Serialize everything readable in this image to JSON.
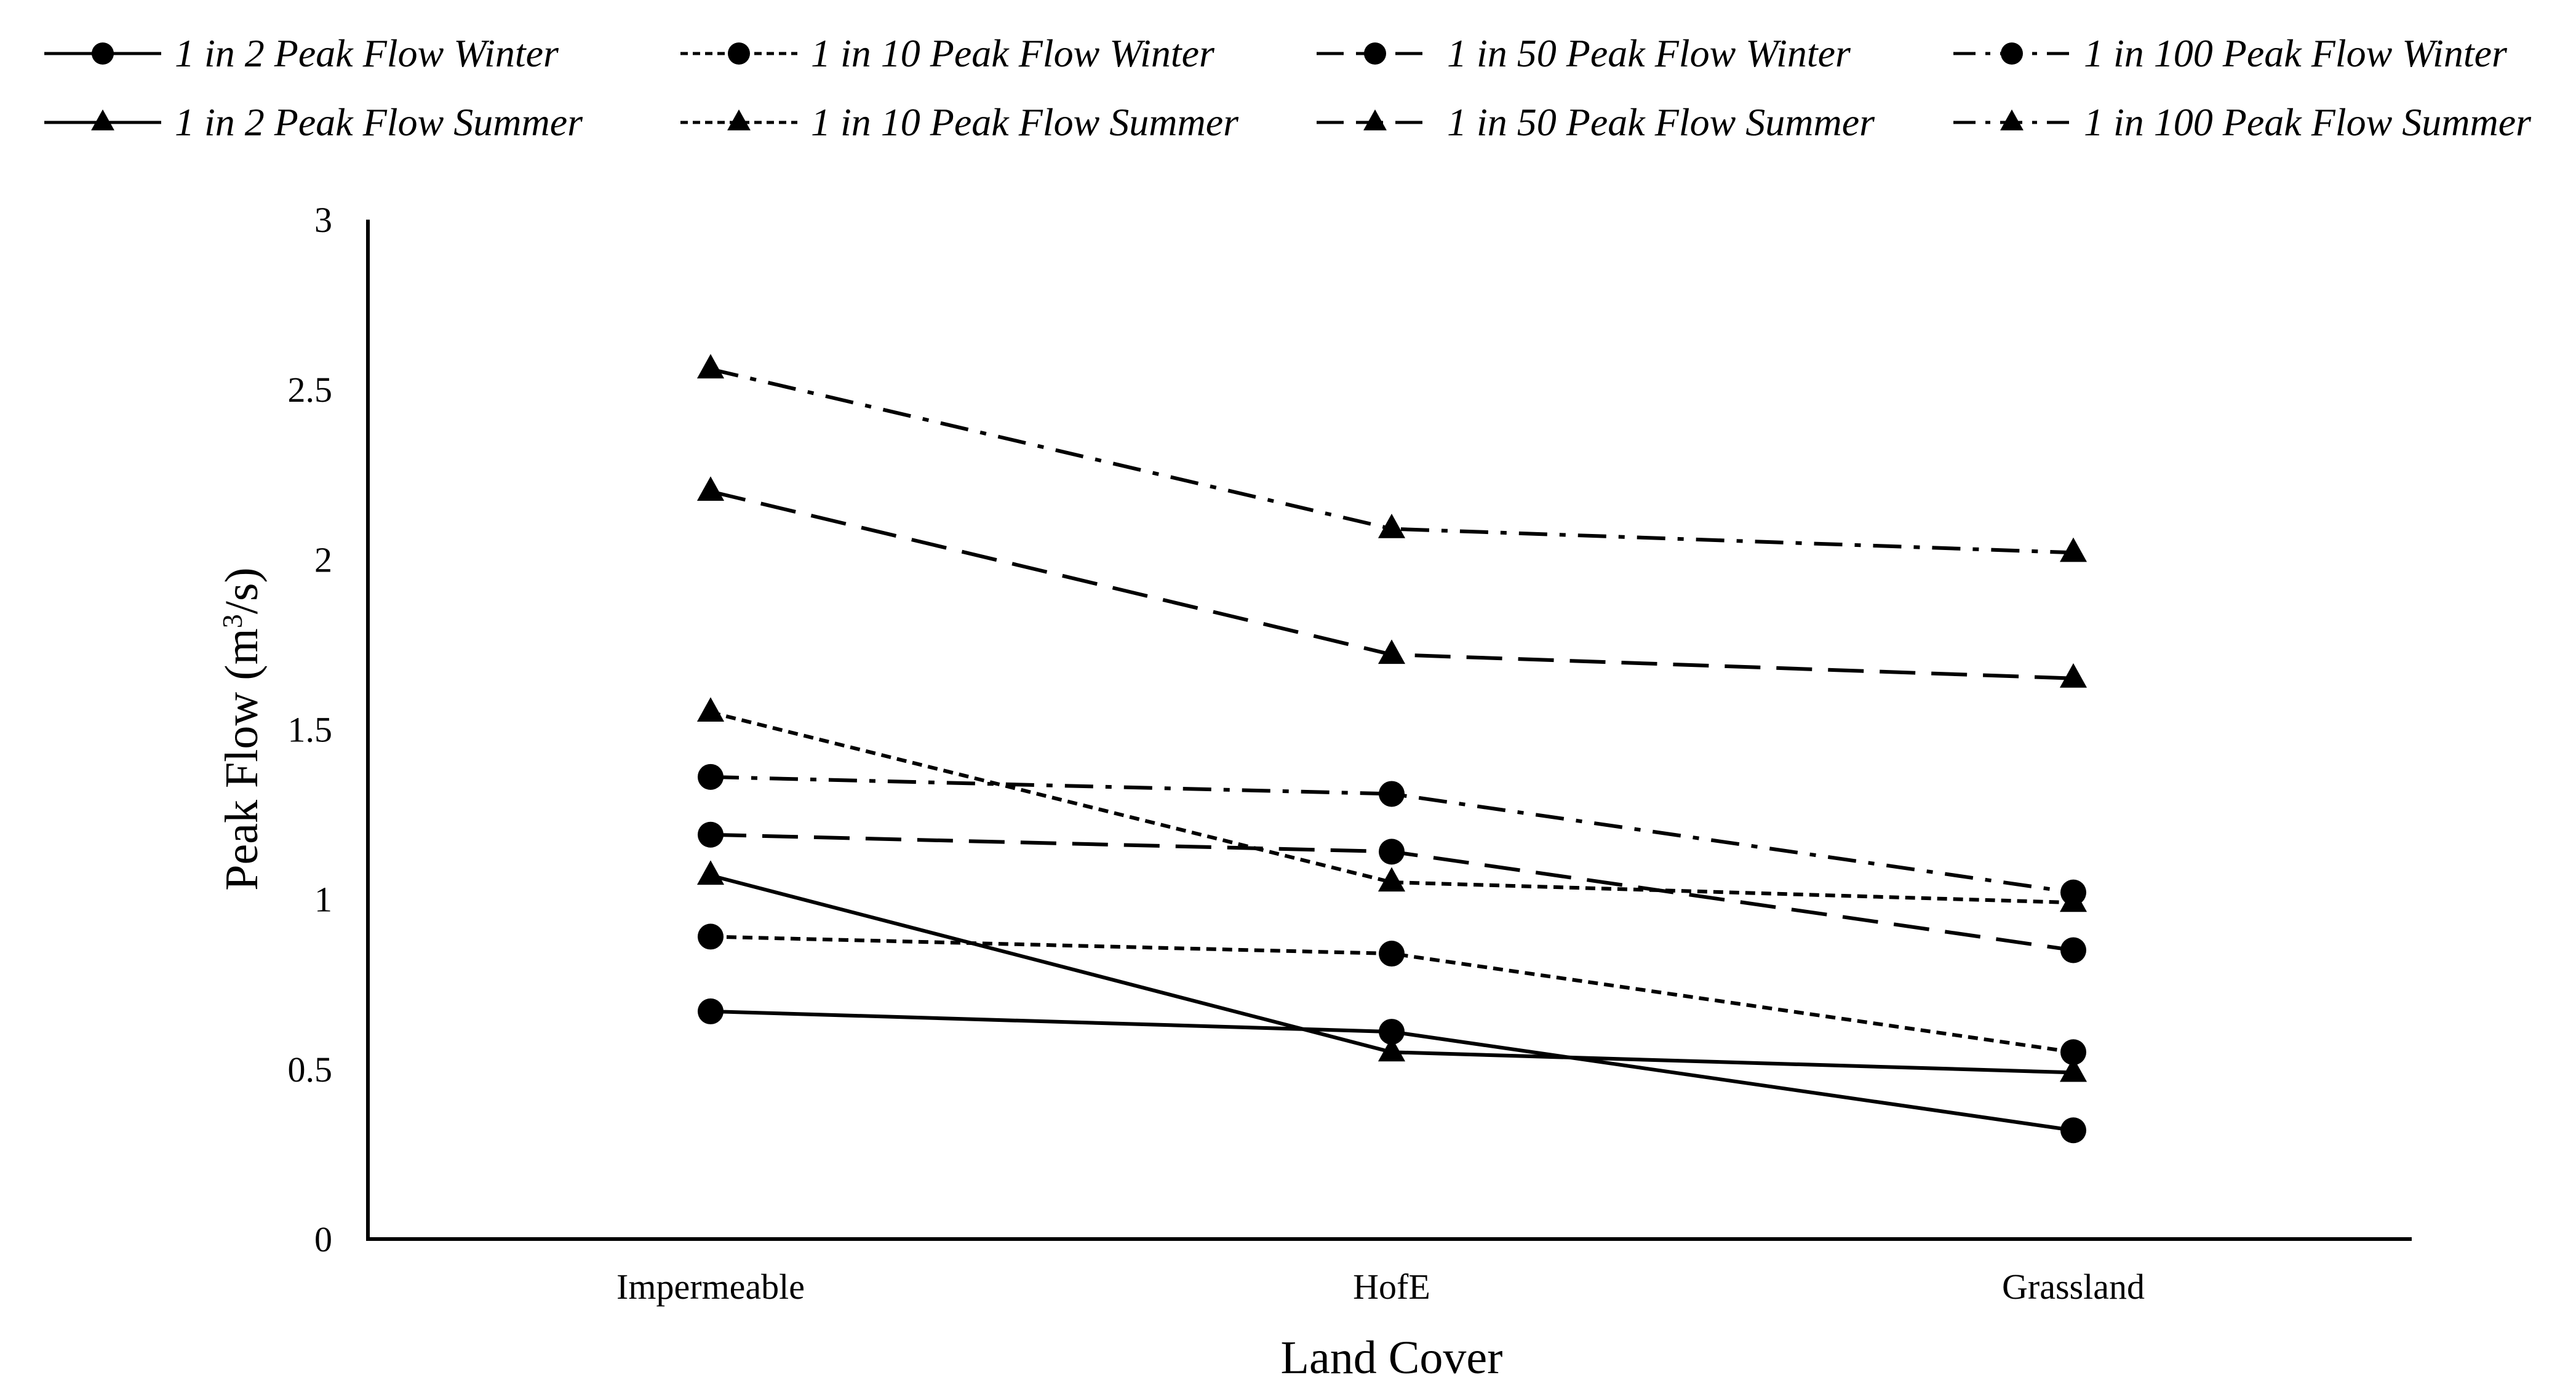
{
  "chart_data": {
    "type": "line",
    "title": "",
    "xlabel": "Land Cover",
    "ylabel": "Peak Flow (m³/s)",
    "ylabel_parts": {
      "main": "Peak Flow (m",
      "sup": "3",
      "end": "/s)"
    },
    "categories": [
      "Impermeable",
      "HofE",
      "Grassland"
    ],
    "ylim": [
      0,
      3
    ],
    "yticks": [
      0,
      0.5,
      1,
      1.5,
      2,
      2.5,
      3
    ],
    "ytick_labels": [
      "0",
      "0.5",
      "1",
      "1.5",
      "2",
      "2.5",
      "3"
    ],
    "grid": false,
    "legend_position": "top",
    "series": [
      {
        "name": "1 in 2 Peak Flow Winter",
        "marker": "circle",
        "dash": "solid",
        "values": [
          0.67,
          0.61,
          0.32
        ]
      },
      {
        "name": "1 in 10 Peak Flow Winter",
        "marker": "circle",
        "dash": "dotted",
        "values": [
          0.89,
          0.84,
          0.55
        ]
      },
      {
        "name": "1 in 50 Peak Flow Winter",
        "marker": "circle",
        "dash": "dashed",
        "values": [
          1.19,
          1.14,
          0.85
        ]
      },
      {
        "name": "1 in 100 Peak Flow Winter",
        "marker": "circle",
        "dash": "dashdot",
        "values": [
          1.36,
          1.31,
          1.02
        ]
      },
      {
        "name": "1 in 2 Peak Flow Summer",
        "marker": "triangle",
        "dash": "solid",
        "values": [
          1.07,
          0.55,
          0.49
        ]
      },
      {
        "name": "1 in 10 Peak Flow Summer",
        "marker": "triangle",
        "dash": "dotted",
        "values": [
          1.55,
          1.05,
          0.99
        ]
      },
      {
        "name": "1 in 50 Peak Flow Summer",
        "marker": "triangle",
        "dash": "dashed",
        "values": [
          2.2,
          1.72,
          1.65
        ]
      },
      {
        "name": "1 in 100 Peak Flow Summer",
        "marker": "triangle",
        "dash": "dashdot",
        "values": [
          2.56,
          2.09,
          2.02
        ]
      }
    ],
    "colors": {
      "line": "#000000",
      "background": "#ffffff"
    }
  }
}
